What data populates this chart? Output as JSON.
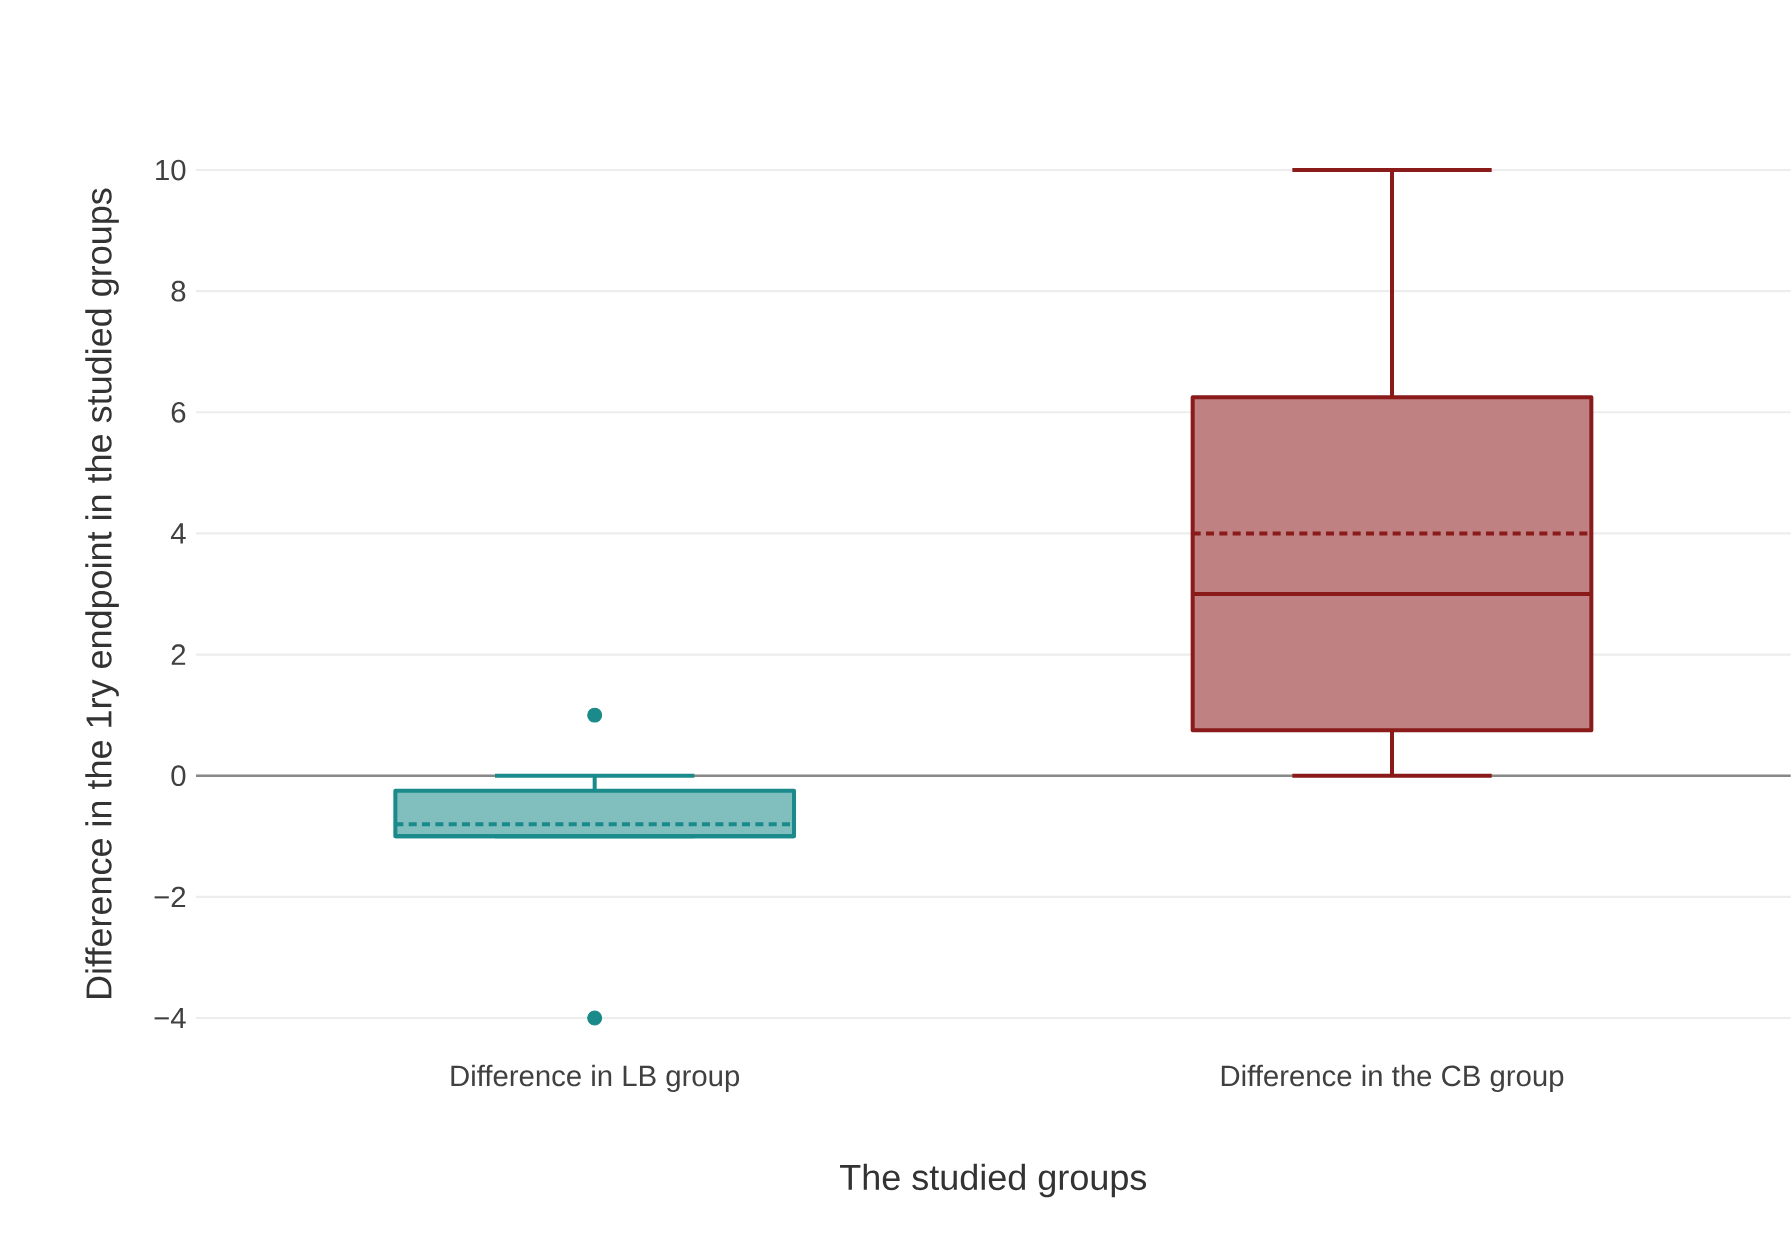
{
  "chart_data": {
    "type": "box",
    "categories": [
      "Difference in LB group",
      "Difference in the CB group"
    ],
    "colors": [
      "#1a8a8a",
      "#8b1a1a"
    ],
    "boxes": [
      {
        "low": -1,
        "q1": -1,
        "median": -1,
        "q3": -0.25,
        "high": 0,
        "mean": -0.8,
        "outliers": [
          1,
          -4
        ]
      },
      {
        "low": 0,
        "q1": 0.75,
        "median": 3,
        "q3": 6.25,
        "high": 10,
        "mean": 4
      }
    ],
    "xlabel": "The studied groups",
    "ylabel": "Difference in the 1ry endpoint in the studied groups",
    "ylim": [
      -4,
      10
    ],
    "yticks": [
      {
        "value": -4,
        "label": "−4"
      },
      {
        "value": -2,
        "label": "−2"
      },
      0,
      2,
      4,
      6,
      8,
      10
    ],
    "grid": "y",
    "ref_lines": [
      {
        "axis": "y",
        "value": 0,
        "color": "#888888"
      }
    ]
  }
}
